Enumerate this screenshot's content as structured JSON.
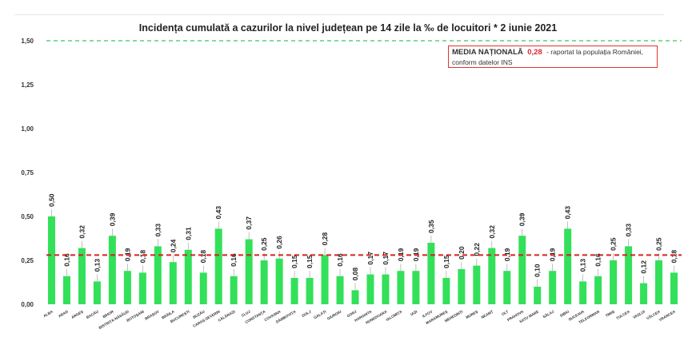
{
  "chart_data": {
    "type": "bar",
    "title": "Incidența cumulată a cazurilor la nivel județean pe 14 zile la ‰ de locuitori *  2 iunie 2021",
    "categories": [
      "ALBA",
      "ARAD",
      "ARGEȘ",
      "BACĂU",
      "BIHOR",
      "BISTRIȚA-NĂSĂUD",
      "BOTOȘANI",
      "BRAȘOV",
      "BRĂILA",
      "BUCUREȘTI",
      "BUZĂU",
      "CARAȘ-SEVERIN",
      "CĂLĂRAȘI",
      "CLUJ",
      "CONSTANȚA",
      "COVASNA",
      "DÂMBOVIȚA",
      "DOLJ",
      "GALAȚI",
      "GIURGIU",
      "GORJ",
      "HARGHITA",
      "HUNEDOARA",
      "IALOMIȚA",
      "IAȘI",
      "ILFOV",
      "MARAMUREȘ",
      "MEHEDINȚI",
      "MUREȘ",
      "NEAMȚ",
      "OLT",
      "PRAHOVA",
      "SATU MARE",
      "SĂLAJ",
      "SIBIU",
      "SUCEAVA",
      "TELEORMAN",
      "TIMIȘ",
      "TULCEA",
      "VASLUI",
      "VÂLCEA",
      "VRANCEA"
    ],
    "values": [
      0.5,
      0.16,
      0.32,
      0.13,
      0.39,
      0.19,
      0.18,
      0.33,
      0.24,
      0.31,
      0.18,
      0.43,
      0.16,
      0.37,
      0.25,
      0.26,
      0.15,
      0.15,
      0.28,
      0.16,
      0.08,
      0.17,
      0.17,
      0.19,
      0.19,
      0.35,
      0.15,
      0.2,
      0.22,
      0.32,
      0.19,
      0.39,
      0.1,
      0.19,
      0.43,
      0.13,
      0.16,
      0.25,
      0.33,
      0.12,
      0.25,
      0.18
    ],
    "value_labels": [
      "0,50",
      "0,16",
      "0,32",
      "0,13",
      "0,39",
      "0,19",
      "0,18",
      "0,33",
      "0,24",
      "0,31",
      "0,18",
      "0,43",
      "0,16",
      "0,37",
      "0,25",
      "0,26",
      "0,15",
      "0,15",
      "0,28",
      "0,16",
      "0,08",
      "0,17",
      "0,17",
      "0,19",
      "0,19",
      "0,35",
      "0,15",
      "0,20",
      "0,22",
      "0,32",
      "0,19",
      "0,39",
      "0,10",
      "0,19",
      "0,43",
      "0,13",
      "0,16",
      "0,25",
      "0,33",
      "0,12",
      "0,25",
      "0,18"
    ],
    "y_ticks": [
      0.0,
      0.25,
      0.5,
      0.75,
      1.0,
      1.25,
      1.5
    ],
    "y_tick_labels": [
      "0,00",
      "0,25",
      "0,50",
      "0,75",
      "1,00",
      "1,25",
      "1,50"
    ],
    "ylim": [
      0,
      1.5
    ],
    "national_average": 0.28,
    "threshold": 1.5,
    "grid": false,
    "colors": {
      "bar": "#33e05a",
      "average_line": "#d82020",
      "threshold_line": "#3cc85a",
      "label_line": "#9a9a9a"
    },
    "annotation": {
      "label": "MEDIA NAȚIONALĂ",
      "value": "0,28",
      "text_line1": " - raportat la populația României,",
      "text_line2": "conform datelor INS"
    }
  }
}
